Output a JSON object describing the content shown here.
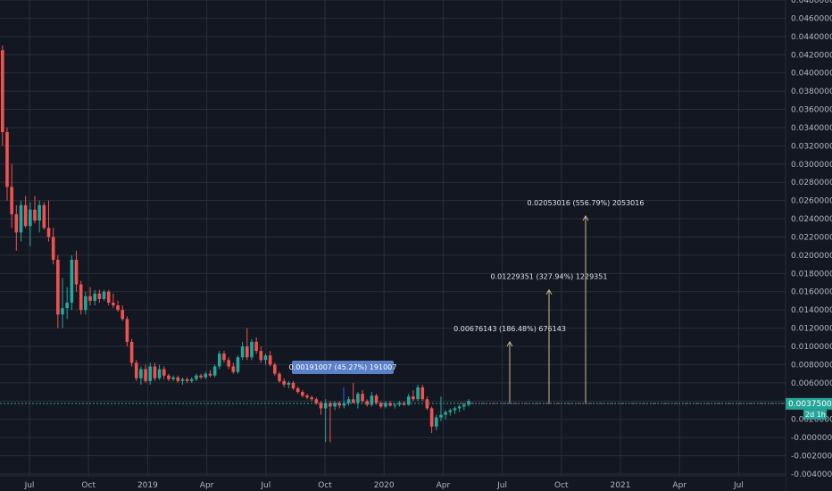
{
  "chart_data": {
    "type": "candlestick",
    "y_ticks": [
      "0.04800000",
      "0.04600000",
      "0.04400000",
      "0.04200000",
      "0.04000000",
      "0.03800000",
      "0.03600000",
      "0.03400000",
      "0.03200000",
      "0.03000000",
      "0.02800000",
      "0.02600000",
      "0.02400000",
      "0.02200000",
      "0.02000000",
      "0.01800000",
      "0.01600000",
      "0.01400000",
      "0.01200000",
      "0.01000000",
      "0.00800000",
      "0.00600000",
      "0.00400000",
      "0.00200000",
      "-0.00000000",
      "-0.00200000",
      "-0.00400000"
    ],
    "x_ticks": [
      "Jul",
      "Oct",
      "2019",
      "Apr",
      "Jul",
      "Oct",
      "2020",
      "Apr",
      "Jul",
      "Oct",
      "2021",
      "Apr",
      "Jul"
    ],
    "ylim": [
      -0.0042,
      0.048
    ],
    "last_price_label": "0.00375000",
    "last_price": 0.00375,
    "countdown": "2d 1h",
    "colors": {
      "up": "#26a69a",
      "down": "#ef5350",
      "grid": "#2a2e39",
      "bg": "#131722",
      "text": "#b2b5be"
    },
    "annotations": [
      {
        "label": "0.00191007 (45.27%) 191007",
        "boxed": true,
        "target": 0.0061
      },
      {
        "label": "0.00676143 (186.48%) 676143",
        "boxed": false,
        "target": 0.0105
      },
      {
        "label": "0.01229351 (327.94%) 1229351",
        "boxed": false,
        "target": 0.0162
      },
      {
        "label": "0.02053016 (556.79%) 2053016",
        "boxed": false,
        "target": 0.0243
      }
    ],
    "candles": [
      [
        0.0425,
        0.043,
        0.032,
        0.0335
      ],
      [
        0.0335,
        0.034,
        0.026,
        0.0275
      ],
      [
        0.0275,
        0.03,
        0.023,
        0.0245
      ],
      [
        0.0245,
        0.0255,
        0.0205,
        0.0225
      ],
      [
        0.0225,
        0.026,
        0.0215,
        0.0255
      ],
      [
        0.0255,
        0.0265,
        0.023,
        0.0232
      ],
      [
        0.0232,
        0.0258,
        0.021,
        0.025
      ],
      [
        0.025,
        0.0265,
        0.0235,
        0.0238
      ],
      [
        0.0238,
        0.026,
        0.0225,
        0.0255
      ],
      [
        0.0255,
        0.0258,
        0.0228,
        0.023
      ],
      [
        0.023,
        0.026,
        0.0215,
        0.022
      ],
      [
        0.022,
        0.023,
        0.019,
        0.0195
      ],
      [
        0.0195,
        0.02,
        0.012,
        0.0135
      ],
      [
        0.0135,
        0.0175,
        0.012,
        0.0142
      ],
      [
        0.0142,
        0.0165,
        0.013,
        0.0148
      ],
      [
        0.0148,
        0.02,
        0.014,
        0.0195
      ],
      [
        0.0195,
        0.0205,
        0.016,
        0.0168
      ],
      [
        0.0168,
        0.0172,
        0.0135,
        0.014
      ],
      [
        0.014,
        0.016,
        0.0135,
        0.0155
      ],
      [
        0.0155,
        0.0165,
        0.0145,
        0.015
      ],
      [
        0.015,
        0.0162,
        0.0145,
        0.0158
      ],
      [
        0.0158,
        0.0162,
        0.0148,
        0.0152
      ],
      [
        0.0152,
        0.0162,
        0.015,
        0.016
      ],
      [
        0.016,
        0.0162,
        0.0145,
        0.0148
      ],
      [
        0.0148,
        0.0158,
        0.0142,
        0.0145
      ],
      [
        0.0145,
        0.015,
        0.0138,
        0.014
      ],
      [
        0.014,
        0.0145,
        0.0128,
        0.013
      ],
      [
        0.013,
        0.0133,
        0.01,
        0.0105
      ],
      [
        0.0105,
        0.0108,
        0.0078,
        0.0082
      ],
      [
        0.0082,
        0.0085,
        0.0062,
        0.0065
      ],
      [
        0.0065,
        0.0078,
        0.0058,
        0.0075
      ],
      [
        0.0075,
        0.008,
        0.006,
        0.0062
      ],
      [
        0.0062,
        0.0082,
        0.0058,
        0.0078
      ],
      [
        0.0078,
        0.0082,
        0.0062,
        0.0065
      ],
      [
        0.0065,
        0.008,
        0.0063,
        0.0075
      ],
      [
        0.0075,
        0.0078,
        0.0064,
        0.0068
      ],
      [
        0.0068,
        0.007,
        0.0062,
        0.0064
      ],
      [
        0.0064,
        0.0068,
        0.0062,
        0.0066
      ],
      [
        0.0066,
        0.0068,
        0.006,
        0.0062
      ],
      [
        0.0062,
        0.0066,
        0.0058,
        0.0064
      ],
      [
        0.0064,
        0.0066,
        0.006,
        0.0062
      ],
      [
        0.0062,
        0.0066,
        0.006,
        0.0064
      ],
      [
        0.0064,
        0.007,
        0.0062,
        0.0068
      ],
      [
        0.0068,
        0.007,
        0.0064,
        0.0066
      ],
      [
        0.0066,
        0.0072,
        0.0064,
        0.007
      ],
      [
        0.007,
        0.0074,
        0.0066,
        0.0068
      ],
      [
        0.0068,
        0.008,
        0.0066,
        0.0078
      ],
      [
        0.0078,
        0.0095,
        0.0075,
        0.0092
      ],
      [
        0.0092,
        0.0095,
        0.0082,
        0.0085
      ],
      [
        0.0085,
        0.0088,
        0.0075,
        0.0078
      ],
      [
        0.0078,
        0.0082,
        0.007,
        0.0072
      ],
      [
        0.0072,
        0.009,
        0.007,
        0.0088
      ],
      [
        0.0088,
        0.0105,
        0.0085,
        0.01
      ],
      [
        0.01,
        0.012,
        0.0085,
        0.0088
      ],
      [
        0.0088,
        0.0108,
        0.0085,
        0.0105
      ],
      [
        0.0105,
        0.011,
        0.0092,
        0.0095
      ],
      [
        0.0095,
        0.01,
        0.0082,
        0.0085
      ],
      [
        0.0085,
        0.0092,
        0.008,
        0.009
      ],
      [
        0.009,
        0.0095,
        0.0078,
        0.008
      ],
      [
        0.008,
        0.0082,
        0.0068,
        0.007
      ],
      [
        0.007,
        0.0072,
        0.006,
        0.0062
      ],
      [
        0.0062,
        0.0065,
        0.0055,
        0.0058
      ],
      [
        0.0058,
        0.0062,
        0.0054,
        0.006
      ],
      [
        0.006,
        0.0062,
        0.0052,
        0.0054
      ],
      [
        0.0054,
        0.0056,
        0.0048,
        0.005
      ],
      [
        0.005,
        0.0052,
        0.0044,
        0.0046
      ],
      [
        0.0046,
        0.0048,
        0.0042,
        0.0044
      ],
      [
        0.0044,
        0.0046,
        0.004,
        0.0042
      ],
      [
        0.0042,
        0.0044,
        0.0036,
        0.0038
      ],
      [
        0.0038,
        0.004,
        0.0025,
        0.0032
      ],
      [
        0.0032,
        0.0042,
        -0.0005,
        0.0038
      ],
      [
        0.0038,
        0.004,
        -0.0005,
        0.0034
      ],
      [
        0.0034,
        0.004,
        0.003,
        0.0038
      ],
      [
        0.0038,
        0.004,
        0.0032,
        0.0035
      ],
      [
        0.0035,
        0.004,
        0.0032,
        0.0038
      ],
      [
        0.0038,
        0.0045,
        0.0035,
        0.0042
      ],
      [
        0.0042,
        0.006,
        0.004,
        0.0038
      ],
      [
        0.0038,
        0.005,
        0.0032,
        0.0048
      ],
      [
        0.0048,
        0.0052,
        0.0038,
        0.004
      ],
      [
        0.004,
        0.0042,
        0.0034,
        0.0036
      ],
      [
        0.0036,
        0.005,
        0.0034,
        0.0046
      ],
      [
        0.0046,
        0.0048,
        0.0036,
        0.0038
      ],
      [
        0.0038,
        0.004,
        0.0032,
        0.0034
      ],
      [
        0.0034,
        0.004,
        0.0032,
        0.0038
      ],
      [
        0.0038,
        0.004,
        0.0034,
        0.0035
      ],
      [
        0.0035,
        0.0038,
        0.0032,
        0.0036
      ],
      [
        0.0036,
        0.004,
        0.0034,
        0.0038
      ],
      [
        0.0038,
        0.004,
        0.0035,
        0.0036
      ],
      [
        0.0036,
        0.0048,
        0.0035,
        0.0045
      ],
      [
        0.0045,
        0.0052,
        0.004,
        0.0042
      ],
      [
        0.0042,
        0.0058,
        0.004,
        0.0055
      ],
      [
        0.0055,
        0.0058,
        0.004,
        0.0042
      ],
      [
        0.0042,
        0.0045,
        0.003,
        0.0032
      ],
      [
        0.0032,
        0.0034,
        0.0005,
        0.0012
      ],
      [
        0.0012,
        0.0025,
        0.0008,
        0.0022
      ],
      [
        0.0022,
        0.0045,
        0.0018,
        0.0025
      ],
      [
        0.0025,
        0.003,
        0.002,
        0.0028
      ],
      [
        0.0028,
        0.0032,
        0.0024,
        0.003
      ],
      [
        0.003,
        0.0034,
        0.0026,
        0.0032
      ],
      [
        0.0032,
        0.0036,
        0.0028,
        0.0034
      ],
      [
        0.0034,
        0.0038,
        0.003,
        0.0036
      ],
      [
        0.0036,
        0.0042,
        0.0034,
        0.004
      ]
    ]
  }
}
